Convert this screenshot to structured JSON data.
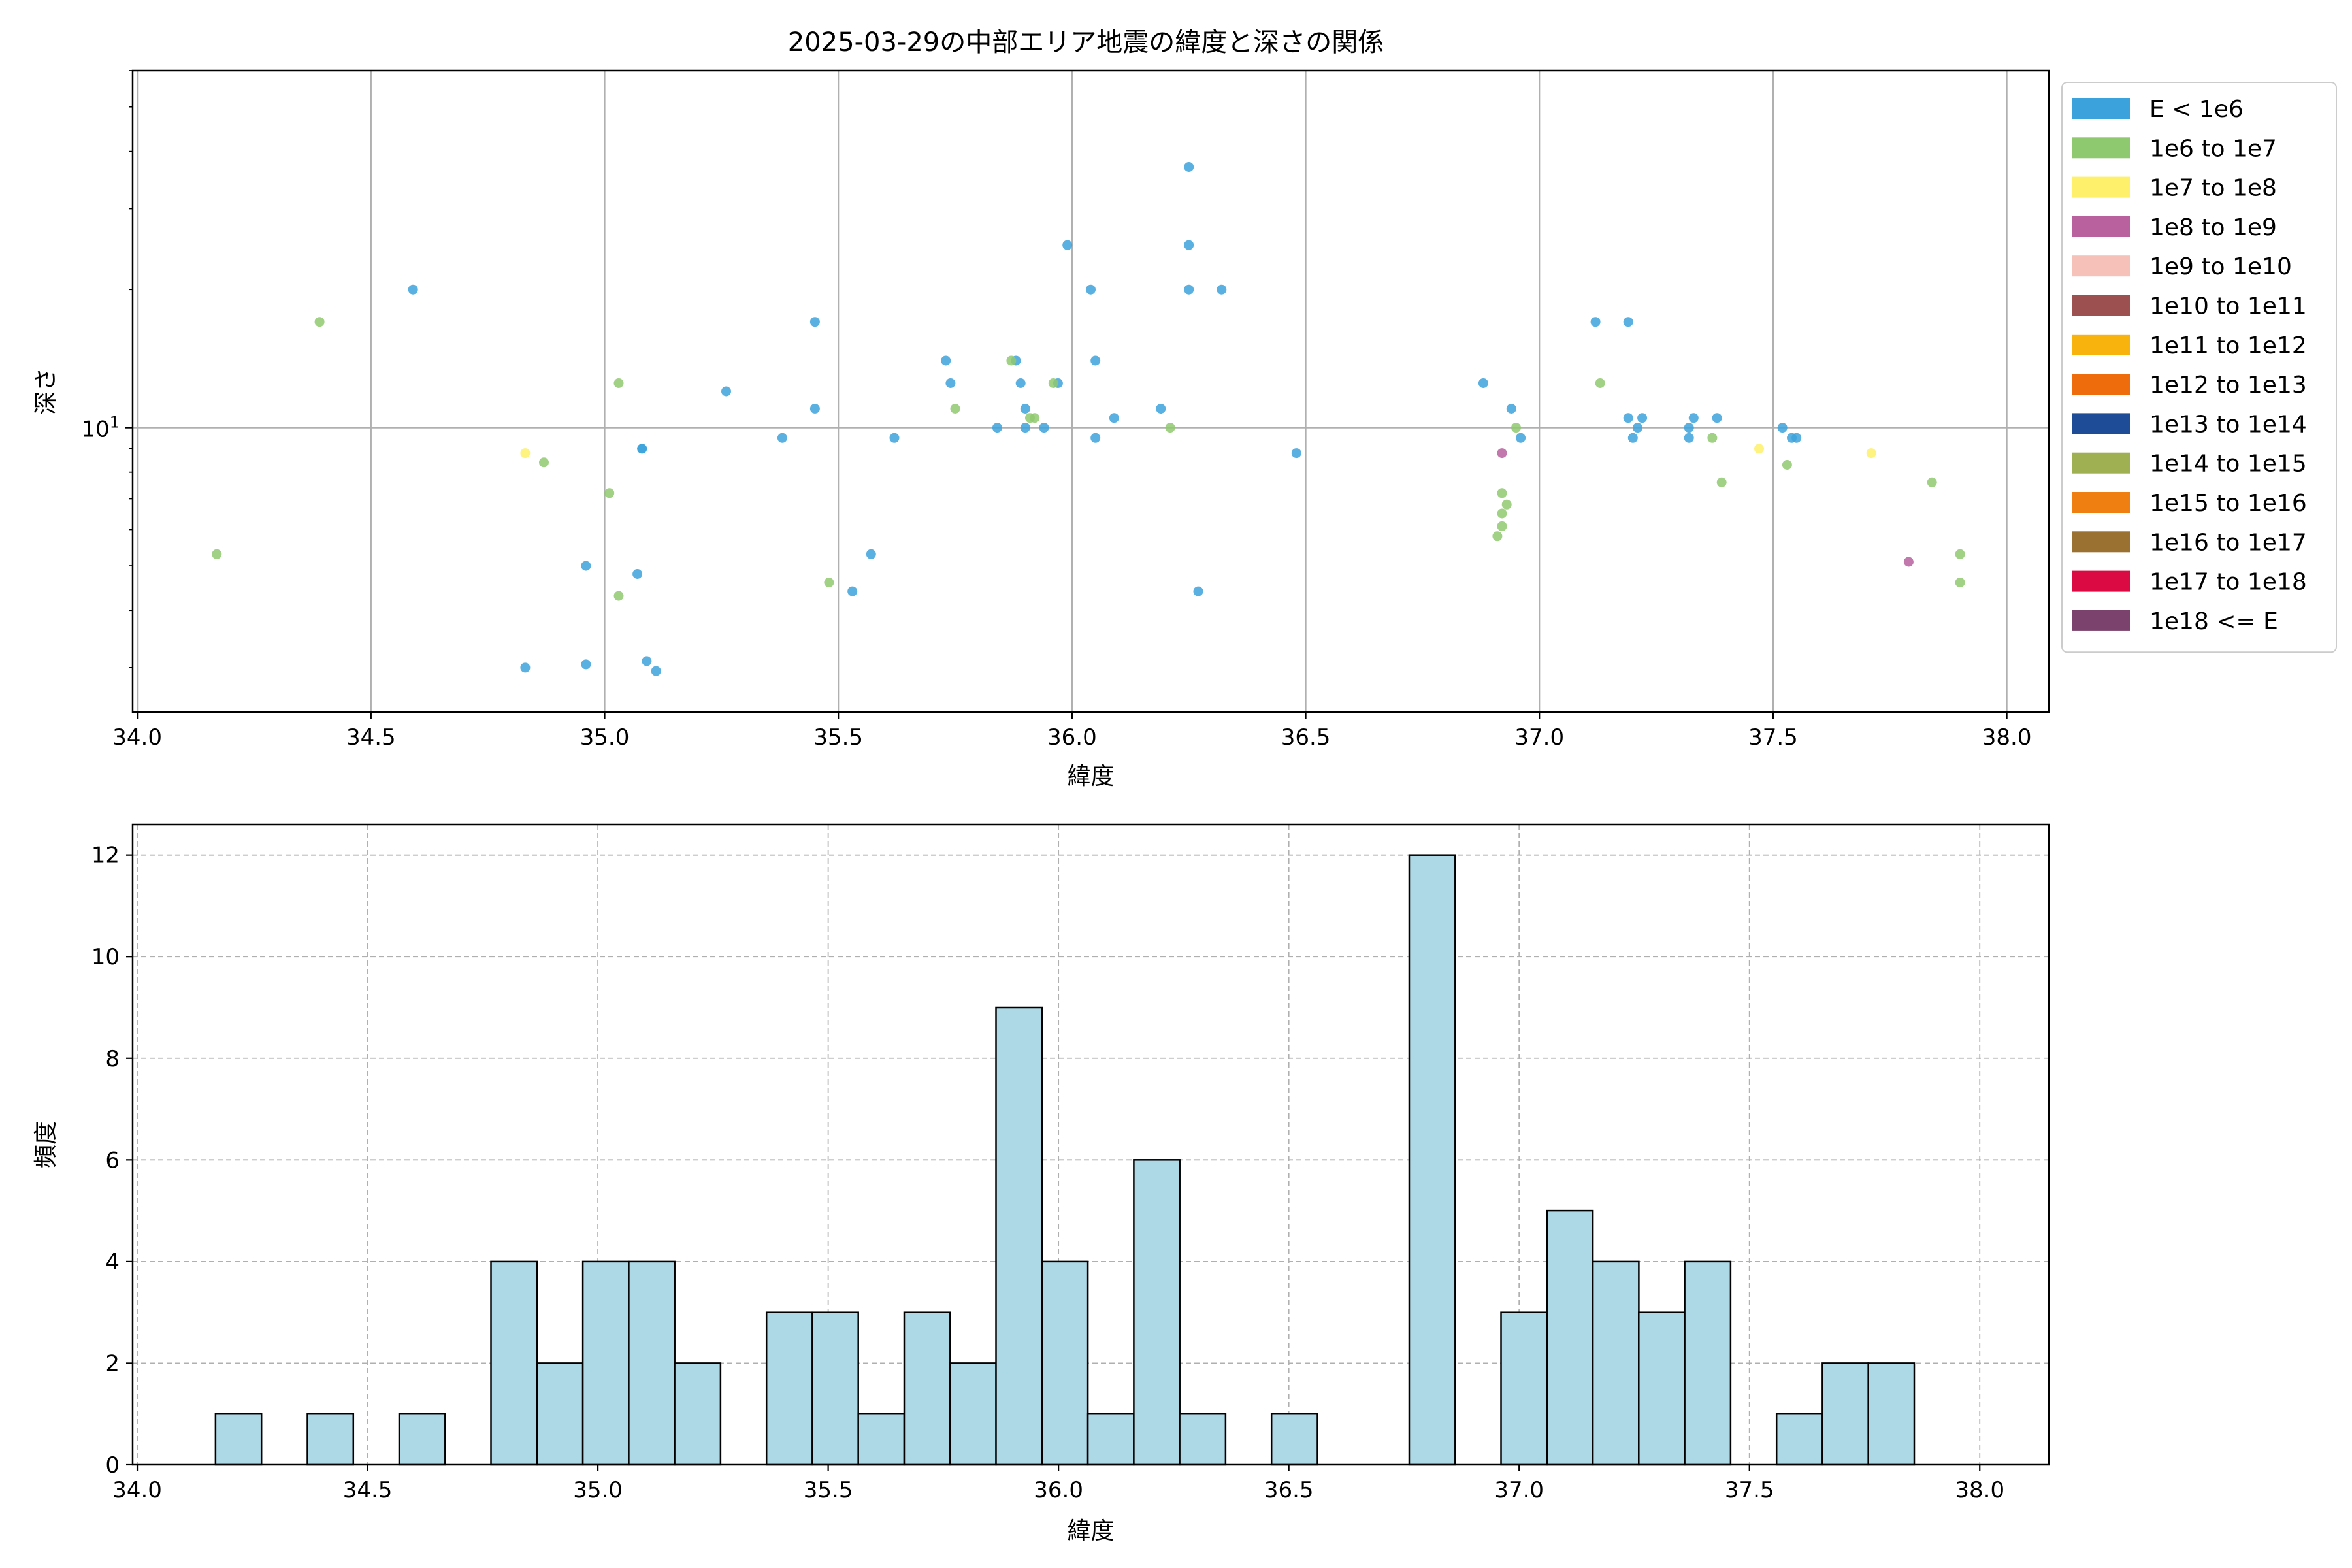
{
  "chart_data": [
    {
      "type": "scatter",
      "title": "2025-03-29の中部エリア地震の緯度と深さの関係",
      "xlabel": "緯度",
      "ylabel": "深さ",
      "xlim": [
        33.99,
        38.09
      ],
      "xticks": [
        34.0,
        34.5,
        35.0,
        35.5,
        36.0,
        36.5,
        37.0,
        37.5,
        38.0
      ],
      "xtick_labels": [
        "34.0",
        "34.5",
        "35.0",
        "35.5",
        "36.0",
        "36.5",
        "37.0",
        "37.5",
        "38.0"
      ],
      "yscale": "log",
      "ylim": [
        2.4,
        60
      ],
      "yticks": [
        10
      ],
      "ytick_labels": [
        "10"
      ],
      "grid": true,
      "legend_position": "outside-right",
      "legend": [
        {
          "label": "E < 1e6",
          "color": "#3ca2dc"
        },
        {
          "label": "1e6 to 1e7",
          "color": "#8fc96f"
        },
        {
          "label": "1e7 to 1e8",
          "color": "#fef06a"
        },
        {
          "label": "1e8 to 1e9",
          "color": "#b9609f"
        },
        {
          "label": "1e9 to 1e10",
          "color": "#f5c1b9"
        },
        {
          "label": "1e10 to 1e11",
          "color": "#9c5050"
        },
        {
          "label": "1e11 to 1e12",
          "color": "#f8b40c"
        },
        {
          "label": "1e12 to 1e13",
          "color": "#ee6c0c"
        },
        {
          "label": "1e13 to 1e14",
          "color": "#1e4c96"
        },
        {
          "label": "1e14 to 1e15",
          "color": "#9fb053"
        },
        {
          "label": "1e15 to 1e16",
          "color": "#ef7f10"
        },
        {
          "label": "1e16 to 1e17",
          "color": "#9a7130"
        },
        {
          "label": "1e17 to 1e18",
          "color": "#dc0a42"
        },
        {
          "label": "1e18 <= E",
          "color": "#7a426c"
        }
      ],
      "series": [
        {
          "name": "E < 1e6",
          "points": [
            [
              34.59,
              20
            ],
            [
              35.26,
              12
            ],
            [
              35.45,
              17
            ],
            [
              35.45,
              11
            ],
            [
              35.38,
              9.5
            ],
            [
              35.08,
              9
            ],
            [
              35.08,
              9
            ],
            [
              34.96,
              5
            ],
            [
              35.07,
              4.8
            ],
            [
              35.57,
              5.3
            ],
            [
              35.53,
              4.4
            ],
            [
              34.83,
              3
            ],
            [
              34.96,
              3.05
            ],
            [
              35.09,
              3.1
            ],
            [
              35.11,
              2.95
            ],
            [
              35.62,
              9.5
            ],
            [
              35.73,
              14
            ],
            [
              35.74,
              12.5
            ],
            [
              35.84,
              10
            ],
            [
              35.88,
              14
            ],
            [
              35.89,
              12.5
            ],
            [
              35.9,
              11
            ],
            [
              35.9,
              10
            ],
            [
              35.94,
              10
            ],
            [
              35.97,
              12.5
            ],
            [
              35.99,
              25
            ],
            [
              36.04,
              20
            ],
            [
              36.05,
              14
            ],
            [
              36.05,
              9.5
            ],
            [
              36.09,
              10.5
            ],
            [
              36.19,
              11
            ],
            [
              36.25,
              37
            ],
            [
              36.25,
              25
            ],
            [
              36.25,
              20
            ],
            [
              36.32,
              20
            ],
            [
              36.27,
              4.4
            ],
            [
              36.48,
              8.8
            ],
            [
              36.88,
              12.5
            ],
            [
              36.94,
              11
            ],
            [
              36.96,
              9.5
            ],
            [
              37.12,
              17
            ],
            [
              37.19,
              17
            ],
            [
              37.19,
              10.5
            ],
            [
              37.22,
              10.5
            ],
            [
              37.21,
              10
            ],
            [
              37.2,
              9.5
            ],
            [
              37.32,
              10
            ],
            [
              37.33,
              10.5
            ],
            [
              37.32,
              9.5
            ],
            [
              37.38,
              10.5
            ],
            [
              37.52,
              10
            ],
            [
              37.54,
              9.5
            ],
            [
              37.55,
              9.5
            ]
          ]
        },
        {
          "name": "1e6 to 1e7",
          "points": [
            [
              34.17,
              5.3
            ],
            [
              34.39,
              17
            ],
            [
              34.87,
              8.4
            ],
            [
              35.03,
              12.5
            ],
            [
              35.01,
              7.2
            ],
            [
              35.03,
              4.3
            ],
            [
              35.48,
              4.6
            ],
            [
              35.75,
              11
            ],
            [
              35.87,
              14
            ],
            [
              35.92,
              10.5
            ],
            [
              35.91,
              10.5
            ],
            [
              35.96,
              12.5
            ],
            [
              36.21,
              10
            ],
            [
              36.92,
              7.2
            ],
            [
              36.93,
              6.8
            ],
            [
              36.92,
              6.5
            ],
            [
              36.92,
              6.1
            ],
            [
              36.91,
              5.8
            ],
            [
              36.95,
              10
            ],
            [
              37.13,
              12.5
            ],
            [
              37.37,
              9.5
            ],
            [
              37.39,
              7.6
            ],
            [
              37.53,
              8.3
            ],
            [
              37.84,
              7.6
            ],
            [
              37.9,
              5.3
            ],
            [
              37.9,
              4.6
            ]
          ]
        },
        {
          "name": "1e7 to 1e8",
          "points": [
            [
              34.83,
              8.8
            ],
            [
              37.47,
              9
            ],
            [
              37.71,
              8.8
            ]
          ]
        },
        {
          "name": "1e8 to 1e9",
          "points": [
            [
              36.92,
              8.8
            ],
            [
              37.79,
              5.1
            ]
          ]
        }
      ]
    },
    {
      "type": "histogram",
      "xlabel": "緯度",
      "ylabel": "頻度",
      "xlim": [
        33.99,
        38.15
      ],
      "ylim": [
        0,
        12.6
      ],
      "xticks": [
        34.0,
        34.5,
        35.0,
        35.5,
        36.0,
        36.5,
        37.0,
        37.5,
        38.0
      ],
      "xtick_labels": [
        "34.0",
        "34.5",
        "35.0",
        "35.5",
        "36.0",
        "36.5",
        "37.0",
        "37.5",
        "38.0"
      ],
      "yticks": [
        0,
        2,
        4,
        6,
        8,
        10,
        12
      ],
      "ytick_labels": [
        "0",
        "2",
        "4",
        "6",
        "8",
        "10",
        "12"
      ],
      "grid": true,
      "bar_color": "#add8e6",
      "edge_color": "#000000",
      "bin_start": 34.17,
      "bin_width": 0.09967,
      "counts": [
        1,
        0,
        1,
        0,
        1,
        0,
        4,
        2,
        4,
        4,
        2,
        0,
        3,
        3,
        1,
        3,
        2,
        9,
        4,
        1,
        6,
        1,
        0,
        1,
        0,
        0,
        12,
        0,
        3,
        5,
        4,
        3,
        4,
        0,
        1,
        2,
        2
      ]
    }
  ]
}
